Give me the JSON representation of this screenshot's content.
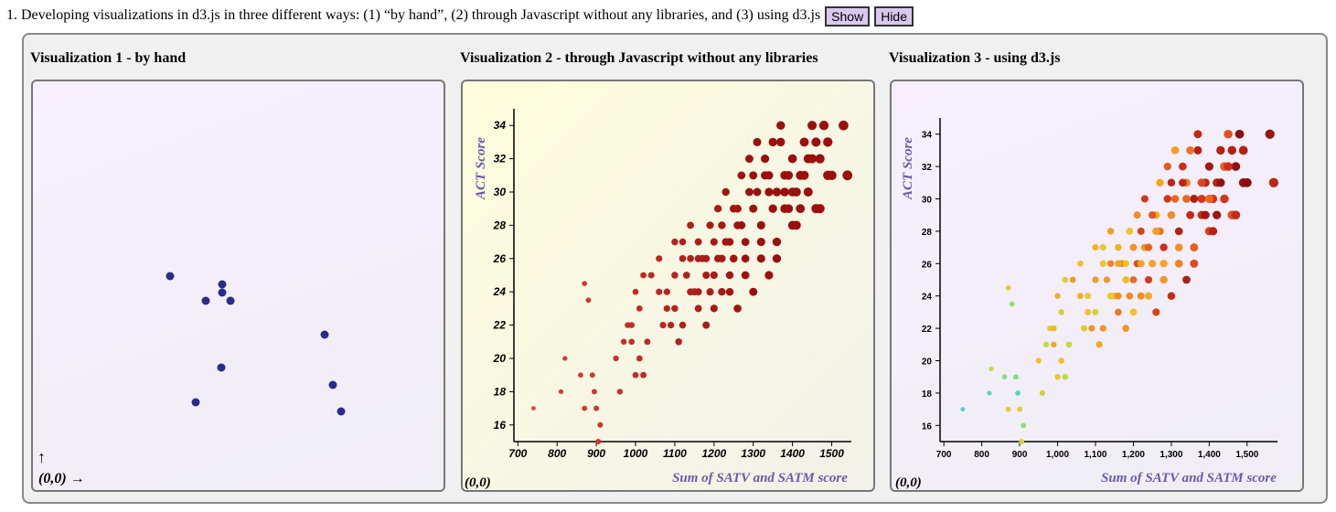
{
  "heading": {
    "text": "1. Developing visualizations in d3.js in three different ways: (1) “by hand”, (2) through Javascript without any libraries, and (3) using d3.js",
    "show_label": "Show",
    "hide_label": "Hide"
  },
  "vis1": {
    "title": "Visualization 1 - by hand",
    "up_arrow": "↑",
    "origin_label": "(0,0) →",
    "point_color": "#2e2a8a"
  },
  "vis2": {
    "title": "Visualization 2 - through Javascript without any libraries",
    "origin_label": "(0,0)"
  },
  "vis3": {
    "title": "Visualization 3 - using d3.js",
    "origin_label": "(0,0)"
  },
  "chart_data": [
    {
      "type": "scatter",
      "title": "",
      "points": [
        [
          150,
          213
        ],
        [
          189,
          240
        ],
        [
          207,
          222
        ],
        [
          207,
          231
        ],
        [
          216,
          240
        ],
        [
          206,
          313
        ],
        [
          178,
          351
        ],
        [
          319,
          277
        ],
        [
          328,
          332
        ],
        [
          337,
          361
        ]
      ]
    },
    {
      "type": "scatter",
      "xlabel": "Sum of SATV and SATM score",
      "ylabel": "ACT Score",
      "xlim": [
        690,
        1550
      ],
      "ylim": [
        15,
        35
      ],
      "xticks": [
        "700",
        "800",
        "900",
        "1000",
        "1100",
        "1200",
        "1300",
        "1400",
        "1500"
      ],
      "yticks": [
        "16",
        "18",
        "20",
        "22",
        "24",
        "26",
        "28",
        "30",
        "32",
        "34"
      ],
      "color_low": "#e84a3c",
      "color_high": "#9b0f0f",
      "points": [
        [
          740,
          17
        ],
        [
          810,
          18
        ],
        [
          820,
          20
        ],
        [
          860,
          19
        ],
        [
          870,
          24.5
        ],
        [
          880,
          23.5
        ],
        [
          890,
          19
        ],
        [
          895,
          18
        ],
        [
          900,
          17
        ],
        [
          905,
          15
        ],
        [
          910,
          16
        ],
        [
          870,
          17
        ],
        [
          950,
          20
        ],
        [
          960,
          18
        ],
        [
          970,
          21
        ],
        [
          980,
          22
        ],
        [
          990,
          22
        ],
        [
          1000,
          19
        ],
        [
          1010,
          20
        ],
        [
          1020,
          19
        ],
        [
          1030,
          21
        ],
        [
          990,
          21
        ],
        [
          1010,
          23
        ],
        [
          1000,
          24
        ],
        [
          1020,
          25
        ],
        [
          1040,
          25
        ],
        [
          1060,
          24
        ],
        [
          1070,
          22
        ],
        [
          1080,
          23
        ],
        [
          1090,
          22
        ],
        [
          1100,
          23
        ],
        [
          1110,
          21
        ],
        [
          1120,
          22
        ],
        [
          1130,
          25
        ],
        [
          1150,
          24
        ],
        [
          1160,
          23
        ],
        [
          1170,
          26
        ],
        [
          1180,
          25
        ],
        [
          1190,
          24
        ],
        [
          1200,
          27
        ],
        [
          1210,
          26
        ],
        [
          1220,
          28
        ],
        [
          1230,
          27
        ],
        [
          1240,
          25
        ],
        [
          1250,
          26
        ],
        [
          1260,
          29
        ],
        [
          1270,
          28
        ],
        [
          1280,
          27
        ],
        [
          1290,
          30
        ],
        [
          1300,
          31
        ],
        [
          1310,
          30
        ],
        [
          1320,
          28
        ],
        [
          1330,
          32
        ],
        [
          1340,
          31
        ],
        [
          1350,
          29
        ],
        [
          1360,
          30
        ],
        [
          1370,
          33
        ],
        [
          1380,
          30
        ],
        [
          1390,
          31
        ],
        [
          1400,
          32
        ],
        [
          1410,
          30
        ],
        [
          1420,
          29
        ],
        [
          1430,
          33
        ],
        [
          1440,
          32
        ],
        [
          1450,
          34
        ],
        [
          1460,
          33
        ],
        [
          1470,
          32
        ],
        [
          1480,
          34
        ],
        [
          1490,
          31
        ],
        [
          1500,
          31
        ],
        [
          1530,
          34
        ],
        [
          1540,
          31
        ],
        [
          1100,
          27
        ],
        [
          1120,
          26
        ],
        [
          1140,
          26
        ],
        [
          1160,
          24
        ],
        [
          1180,
          22
        ],
        [
          1200,
          23
        ],
        [
          1220,
          24
        ],
        [
          1240,
          27
        ],
        [
          1260,
          28
        ],
        [
          1280,
          26
        ],
        [
          1300,
          29
        ],
        [
          1320,
          27
        ],
        [
          1340,
          30
        ],
        [
          1360,
          27
        ],
        [
          1380,
          31
        ],
        [
          1400,
          30
        ],
        [
          1120,
          27
        ],
        [
          1140,
          28
        ],
        [
          1160,
          27
        ],
        [
          1180,
          26
        ],
        [
          1200,
          25
        ],
        [
          1220,
          26
        ],
        [
          1240,
          24
        ],
        [
          1260,
          23
        ],
        [
          1280,
          25
        ],
        [
          1300,
          24
        ],
        [
          1320,
          26
        ],
        [
          1340,
          25
        ],
        [
          1360,
          26
        ],
        [
          1380,
          29
        ],
        [
          1400,
          28
        ],
        [
          1420,
          31
        ],
        [
          1440,
          30
        ],
        [
          1460,
          29
        ],
        [
          1060,
          26
        ],
        [
          1080,
          24
        ],
        [
          1100,
          25
        ],
        [
          1140,
          24
        ],
        [
          1160,
          26
        ],
        [
          1190,
          28
        ],
        [
          1210,
          29
        ],
        [
          1230,
          30
        ],
        [
          1250,
          29
        ],
        [
          1270,
          31
        ],
        [
          1290,
          32
        ],
        [
          1310,
          33
        ],
        [
          1330,
          31
        ],
        [
          1350,
          33
        ],
        [
          1370,
          34
        ],
        [
          1390,
          29
        ],
        [
          1410,
          28
        ],
        [
          1430,
          31
        ],
        [
          1450,
          32
        ],
        [
          1470,
          29
        ],
        [
          1490,
          33
        ]
      ]
    },
    {
      "type": "scatter",
      "xlabel": "Sum of SATV and SATM score",
      "ylabel": "ACT Score",
      "xlim": [
        690,
        1580
      ],
      "ylim": [
        15,
        35
      ],
      "xticks": [
        "700",
        "800",
        "900",
        "1,000",
        "1,100",
        "1,200",
        "1,300",
        "1,400",
        "1,500"
      ],
      "yticks": [
        "16",
        "18",
        "20",
        "22",
        "24",
        "26",
        "28",
        "30",
        "32",
        "34"
      ],
      "color_scale": [
        "#3fd6c9",
        "#b4e04a",
        "#f4c22a",
        "#f08a24",
        "#d1301a",
        "#8b0f0f"
      ],
      "points": [
        [
          750,
          17
        ],
        [
          820,
          18
        ],
        [
          825,
          19.5
        ],
        [
          860,
          19
        ],
        [
          870,
          24.5
        ],
        [
          880,
          23.5
        ],
        [
          890,
          19
        ],
        [
          895,
          18
        ],
        [
          900,
          17
        ],
        [
          905,
          15
        ],
        [
          910,
          16
        ],
        [
          870,
          17
        ],
        [
          950,
          20
        ],
        [
          960,
          18
        ],
        [
          970,
          21
        ],
        [
          980,
          22
        ],
        [
          990,
          22
        ],
        [
          1000,
          19
        ],
        [
          1010,
          20
        ],
        [
          1020,
          19
        ],
        [
          1030,
          21
        ],
        [
          990,
          21
        ],
        [
          1010,
          23
        ],
        [
          1000,
          24
        ],
        [
          1020,
          25
        ],
        [
          1040,
          25
        ],
        [
          1060,
          24
        ],
        [
          1070,
          22
        ],
        [
          1080,
          23
        ],
        [
          1090,
          22
        ],
        [
          1100,
          23
        ],
        [
          1110,
          21
        ],
        [
          1120,
          22
        ],
        [
          1130,
          25
        ],
        [
          1150,
          24
        ],
        [
          1160,
          23
        ],
        [
          1170,
          26
        ],
        [
          1180,
          25
        ],
        [
          1190,
          24
        ],
        [
          1200,
          27
        ],
        [
          1210,
          26
        ],
        [
          1220,
          28
        ],
        [
          1230,
          27
        ],
        [
          1240,
          25
        ],
        [
          1250,
          26
        ],
        [
          1260,
          29
        ],
        [
          1270,
          28
        ],
        [
          1280,
          27
        ],
        [
          1290,
          30
        ],
        [
          1300,
          31
        ],
        [
          1310,
          30
        ],
        [
          1320,
          28
        ],
        [
          1330,
          32
        ],
        [
          1340,
          31
        ],
        [
          1350,
          29
        ],
        [
          1360,
          30
        ],
        [
          1370,
          33
        ],
        [
          1380,
          30
        ],
        [
          1390,
          31
        ],
        [
          1400,
          32
        ],
        [
          1410,
          30
        ],
        [
          1420,
          29
        ],
        [
          1430,
          33
        ],
        [
          1440,
          32
        ],
        [
          1450,
          34
        ],
        [
          1460,
          33
        ],
        [
          1470,
          32
        ],
        [
          1480,
          34
        ],
        [
          1490,
          31
        ],
        [
          1500,
          31
        ],
        [
          1560,
          34
        ],
        [
          1570,
          31
        ],
        [
          1100,
          27
        ],
        [
          1120,
          26
        ],
        [
          1140,
          26
        ],
        [
          1160,
          24
        ],
        [
          1180,
          22
        ],
        [
          1200,
          23
        ],
        [
          1220,
          24
        ],
        [
          1240,
          27
        ],
        [
          1260,
          28
        ],
        [
          1280,
          26
        ],
        [
          1300,
          29
        ],
        [
          1320,
          27
        ],
        [
          1340,
          30
        ],
        [
          1360,
          27
        ],
        [
          1380,
          31
        ],
        [
          1400,
          30
        ],
        [
          1120,
          27
        ],
        [
          1140,
          28
        ],
        [
          1160,
          27
        ],
        [
          1180,
          26
        ],
        [
          1200,
          25
        ],
        [
          1220,
          26
        ],
        [
          1240,
          24
        ],
        [
          1260,
          23
        ],
        [
          1280,
          25
        ],
        [
          1300,
          24
        ],
        [
          1320,
          26
        ],
        [
          1340,
          25
        ],
        [
          1360,
          26
        ],
        [
          1380,
          29
        ],
        [
          1400,
          28
        ],
        [
          1420,
          31
        ],
        [
          1440,
          30
        ],
        [
          1460,
          29
        ],
        [
          1060,
          26
        ],
        [
          1080,
          24
        ],
        [
          1100,
          25
        ],
        [
          1140,
          24
        ],
        [
          1160,
          26
        ],
        [
          1190,
          28
        ],
        [
          1210,
          29
        ],
        [
          1230,
          30
        ],
        [
          1250,
          29
        ],
        [
          1270,
          31
        ],
        [
          1290,
          32
        ],
        [
          1310,
          33
        ],
        [
          1330,
          31
        ],
        [
          1350,
          33
        ],
        [
          1370,
          34
        ],
        [
          1390,
          29
        ],
        [
          1410,
          28
        ],
        [
          1430,
          31
        ],
        [
          1450,
          32
        ],
        [
          1470,
          29
        ],
        [
          1490,
          33
        ]
      ]
    }
  ]
}
